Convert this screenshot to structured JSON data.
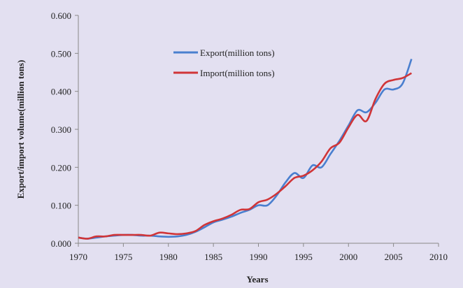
{
  "chart_data": {
    "type": "line",
    "title": "",
    "xlabel": "Years",
    "ylabel": "Export/import volume(million tons)",
    "xlim": [
      1970,
      2010
    ],
    "ylim": [
      0,
      0.6
    ],
    "xticks": [
      "1970",
      "1975",
      "1980",
      "1985",
      "1990",
      "1995",
      "2000",
      "2005",
      "2010"
    ],
    "yticks": [
      "0.000",
      "0.100",
      "0.200",
      "0.300",
      "0.400",
      "0.500",
      "0.600"
    ],
    "legend_position": "top-left",
    "grid": false,
    "x": [
      1970,
      1971,
      1972,
      1973,
      1974,
      1975,
      1976,
      1977,
      1978,
      1979,
      1980,
      1981,
      1982,
      1983,
      1984,
      1985,
      1986,
      1987,
      1988,
      1989,
      1990,
      1991,
      1992,
      1993,
      1994,
      1995,
      1996,
      1997,
      1998,
      1999,
      2000,
      2001,
      2002,
      2003,
      2004,
      2005,
      2006,
      2007
    ],
    "series": [
      {
        "name": "Export(million tons)",
        "color": "#4a7fcf",
        "values": [
          0.015,
          0.012,
          0.015,
          0.018,
          0.02,
          0.022,
          0.022,
          0.02,
          0.02,
          0.018,
          0.017,
          0.018,
          0.022,
          0.03,
          0.042,
          0.055,
          0.062,
          0.07,
          0.08,
          0.088,
          0.1,
          0.1,
          0.125,
          0.16,
          0.185,
          0.172,
          0.205,
          0.2,
          0.235,
          0.27,
          0.31,
          0.35,
          0.345,
          0.37,
          0.405,
          0.405,
          0.42,
          0.485
        ]
      },
      {
        "name": "Import(million tons)",
        "color": "#d03538",
        "values": [
          0.015,
          0.012,
          0.018,
          0.018,
          0.022,
          0.022,
          0.022,
          0.022,
          0.02,
          0.028,
          0.026,
          0.024,
          0.026,
          0.032,
          0.048,
          0.058,
          0.065,
          0.075,
          0.088,
          0.09,
          0.108,
          0.115,
          0.13,
          0.15,
          0.172,
          0.178,
          0.192,
          0.215,
          0.25,
          0.265,
          0.305,
          0.338,
          0.322,
          0.38,
          0.42,
          0.43,
          0.435,
          0.448
        ]
      }
    ]
  }
}
